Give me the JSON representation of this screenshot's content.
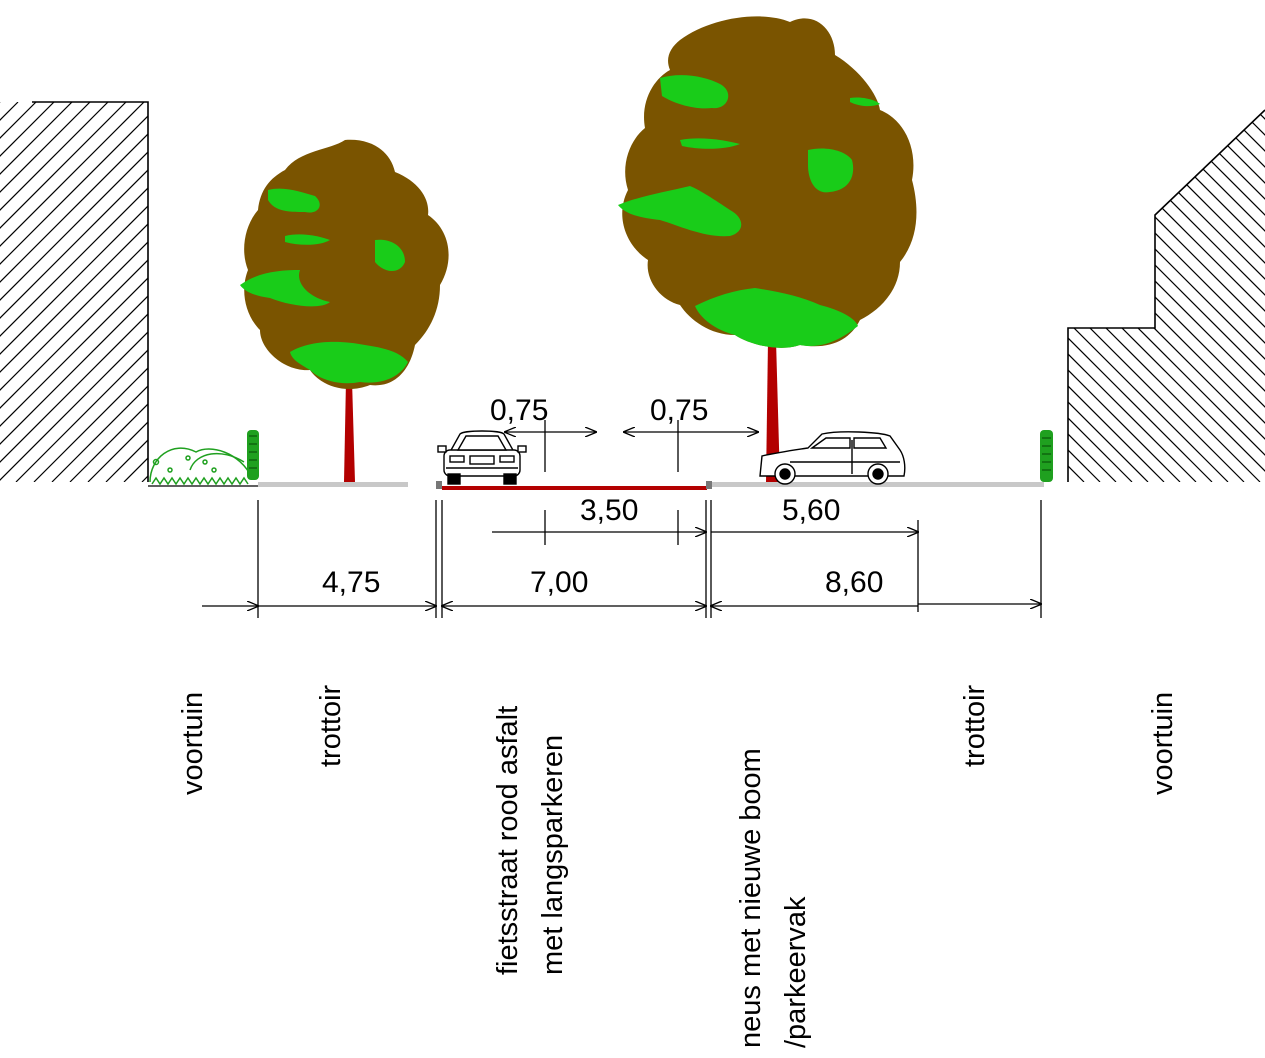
{
  "colors": {
    "canopy": "#7a5400",
    "foliage": "#19cc19",
    "trunk": "#b30000",
    "bike_lane": "#b30000",
    "sidewalk": "#c8c8c8",
    "hedge": "#1fa01f",
    "line": "#000000"
  },
  "dimensions": {
    "offset_left": "0,75",
    "offset_right": "0,75",
    "lane_width": "3,50",
    "parking_width": "5,60",
    "sidewalk_left": "4,75",
    "street": "7,00",
    "sidewalk_right": "8,60"
  },
  "zones": [
    {
      "lines": [
        "voortuin"
      ]
    },
    {
      "lines": [
        "trottoir"
      ]
    },
    {
      "lines": [
        "fietsstraat rood asfalt",
        "met langsparkeren"
      ]
    },
    {
      "lines": [
        "neus met nieuwe boom",
        "/parkeervak"
      ]
    },
    {
      "lines": [
        "trottoir"
      ]
    },
    {
      "lines": [
        "voortuin"
      ]
    }
  ],
  "icons": {
    "left_tree": "deciduous-tree-icon",
    "right_tree": "deciduous-tree-icon",
    "front_car": "car-front-view-icon",
    "side_car": "car-side-view-icon",
    "shrub": "shrub-icon",
    "hedge": "hedge-icon"
  }
}
